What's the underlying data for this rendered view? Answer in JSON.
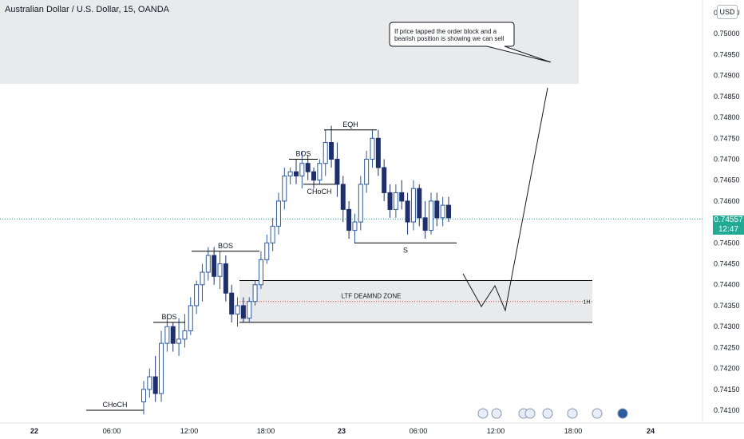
{
  "header": {
    "title": "Australian Dollar / U.S. Dollar, 15, OANDA",
    "currency": "USD"
  },
  "price_tag": {
    "price": "0.74557",
    "countdown": "12:47"
  },
  "callout": {
    "text_line1": "If price tapped the order block and a",
    "text_line2": "bearish position is showing we can sell"
  },
  "colors": {
    "up": "#2c5aa0",
    "down": "#1e2f6b",
    "last_price": "#22ab94",
    "zone_fill": "#e9eaec",
    "shade_fill": "#e9eaec"
  },
  "chart_data": {
    "type": "candlestick",
    "title": "Australian Dollar / U.S. Dollar, 15, OANDA",
    "y_axis": {
      "position": "right",
      "range": [
        0.7408,
        0.7532
      ],
      "tick_labels": [
        "0.75050",
        "0.75000",
        "0.74950",
        "0.74900",
        "0.74850",
        "0.74800",
        "0.74750",
        "0.74700",
        "0.74650",
        "0.74600",
        "0.74500",
        "0.74450",
        "0.74400",
        "0.74350",
        "0.74300",
        "0.74250",
        "0.74200",
        "0.74150",
        "0.74100"
      ]
    },
    "x_axis": {
      "tick_labels": [
        "22",
        "06:00",
        "12:00",
        "18:00",
        "23",
        "06:00",
        "12:00",
        "18:00",
        "24"
      ]
    },
    "last_price": 0.74557,
    "candles": [
      {
        "o": 0.7412,
        "h": 0.7417,
        "l": 0.7409,
        "c": 0.7415
      },
      {
        "o": 0.7415,
        "h": 0.742,
        "l": 0.7413,
        "c": 0.7418
      },
      {
        "o": 0.7418,
        "h": 0.7423,
        "l": 0.7412,
        "c": 0.7414
      },
      {
        "o": 0.7414,
        "h": 0.7429,
        "l": 0.7412,
        "c": 0.7426
      },
      {
        "o": 0.7426,
        "h": 0.7433,
        "l": 0.7424,
        "c": 0.743
      },
      {
        "o": 0.743,
        "h": 0.7431,
        "l": 0.7424,
        "c": 0.7426
      },
      {
        "o": 0.7426,
        "h": 0.7432,
        "l": 0.7423,
        "c": 0.7427
      },
      {
        "o": 0.7427,
        "h": 0.7433,
        "l": 0.7425,
        "c": 0.7429
      },
      {
        "o": 0.7429,
        "h": 0.7437,
        "l": 0.7428,
        "c": 0.7435
      },
      {
        "o": 0.7435,
        "h": 0.7441,
        "l": 0.7433,
        "c": 0.744
      },
      {
        "o": 0.744,
        "h": 0.7445,
        "l": 0.7436,
        "c": 0.7443
      },
      {
        "o": 0.7443,
        "h": 0.7449,
        "l": 0.7441,
        "c": 0.7447
      },
      {
        "o": 0.7447,
        "h": 0.7449,
        "l": 0.744,
        "c": 0.7442
      },
      {
        "o": 0.7442,
        "h": 0.7448,
        "l": 0.7439,
        "c": 0.7445
      },
      {
        "o": 0.7445,
        "h": 0.7447,
        "l": 0.7436,
        "c": 0.7438
      },
      {
        "o": 0.7438,
        "h": 0.744,
        "l": 0.7431,
        "c": 0.7433
      },
      {
        "o": 0.7433,
        "h": 0.7437,
        "l": 0.743,
        "c": 0.7435
      },
      {
        "o": 0.7435,
        "h": 0.7437,
        "l": 0.7431,
        "c": 0.7432
      },
      {
        "o": 0.7432,
        "h": 0.7437,
        "l": 0.7431,
        "c": 0.7436
      },
      {
        "o": 0.7436,
        "h": 0.7441,
        "l": 0.7435,
        "c": 0.744
      },
      {
        "o": 0.744,
        "h": 0.7448,
        "l": 0.7439,
        "c": 0.7446
      },
      {
        "o": 0.7446,
        "h": 0.7452,
        "l": 0.7445,
        "c": 0.745
      },
      {
        "o": 0.745,
        "h": 0.7456,
        "l": 0.7448,
        "c": 0.7454
      },
      {
        "o": 0.7454,
        "h": 0.7462,
        "l": 0.7452,
        "c": 0.746
      },
      {
        "o": 0.746,
        "h": 0.7468,
        "l": 0.7458,
        "c": 0.7466
      },
      {
        "o": 0.7466,
        "h": 0.7468,
        "l": 0.7464,
        "c": 0.7467
      },
      {
        "o": 0.7467,
        "h": 0.747,
        "l": 0.7464,
        "c": 0.7466
      },
      {
        "o": 0.7466,
        "h": 0.7472,
        "l": 0.7463,
        "c": 0.7469
      },
      {
        "o": 0.7469,
        "h": 0.7471,
        "l": 0.7465,
        "c": 0.7467
      },
      {
        "o": 0.7467,
        "h": 0.7468,
        "l": 0.7463,
        "c": 0.7465
      },
      {
        "o": 0.7465,
        "h": 0.747,
        "l": 0.7464,
        "c": 0.7469
      },
      {
        "o": 0.7469,
        "h": 0.7477,
        "l": 0.7466,
        "c": 0.7474
      },
      {
        "o": 0.7474,
        "h": 0.7478,
        "l": 0.7468,
        "c": 0.747
      },
      {
        "o": 0.747,
        "h": 0.7474,
        "l": 0.7461,
        "c": 0.7464
      },
      {
        "o": 0.7464,
        "h": 0.7466,
        "l": 0.7455,
        "c": 0.7458
      },
      {
        "o": 0.7458,
        "h": 0.746,
        "l": 0.7451,
        "c": 0.7453
      },
      {
        "o": 0.7453,
        "h": 0.7457,
        "l": 0.745,
        "c": 0.7455
      },
      {
        "o": 0.7455,
        "h": 0.7466,
        "l": 0.7453,
        "c": 0.7464
      },
      {
        "o": 0.7464,
        "h": 0.7472,
        "l": 0.7462,
        "c": 0.747
      },
      {
        "o": 0.747,
        "h": 0.7477,
        "l": 0.7468,
        "c": 0.7475
      },
      {
        "o": 0.7475,
        "h": 0.7477,
        "l": 0.7466,
        "c": 0.7468
      },
      {
        "o": 0.7468,
        "h": 0.747,
        "l": 0.746,
        "c": 0.7462
      },
      {
        "o": 0.7462,
        "h": 0.7464,
        "l": 0.7456,
        "c": 0.7458
      },
      {
        "o": 0.7458,
        "h": 0.7464,
        "l": 0.7456,
        "c": 0.7462
      },
      {
        "o": 0.7462,
        "h": 0.7465,
        "l": 0.7458,
        "c": 0.746
      },
      {
        "o": 0.746,
        "h": 0.7462,
        "l": 0.7452,
        "c": 0.7455
      },
      {
        "o": 0.7455,
        "h": 0.7465,
        "l": 0.7453,
        "c": 0.7463
      },
      {
        "o": 0.7463,
        "h": 0.7464,
        "l": 0.7454,
        "c": 0.7456
      },
      {
        "o": 0.7456,
        "h": 0.746,
        "l": 0.7451,
        "c": 0.7453
      },
      {
        "o": 0.7453,
        "h": 0.7462,
        "l": 0.7452,
        "c": 0.746
      },
      {
        "o": 0.746,
        "h": 0.7462,
        "l": 0.7454,
        "c": 0.7456
      },
      {
        "o": 0.7456,
        "h": 0.7461,
        "l": 0.7454,
        "c": 0.7459
      },
      {
        "o": 0.7459,
        "h": 0.7461,
        "l": 0.7455,
        "c": 0.7456
      }
    ],
    "annotations": [
      {
        "label": "CHoCH",
        "price": 0.741
      },
      {
        "label": "BOS",
        "price": 0.7431
      },
      {
        "label": "BOS",
        "price": 0.7448
      },
      {
        "label": "BOS",
        "price": 0.747
      },
      {
        "label": "CHoCH",
        "price": 0.7464
      },
      {
        "label": "EQH",
        "price": 0.7477
      },
      {
        "label": "S",
        "price": 0.745
      }
    ],
    "zone": {
      "label": "LTF DEAMND ZONE",
      "timeframe": "1H",
      "top": 0.7441,
      "bottom": 0.7431,
      "mid": 0.7436
    },
    "shaded_region": {
      "top": 0.7532,
      "bottom": 0.7488
    }
  }
}
